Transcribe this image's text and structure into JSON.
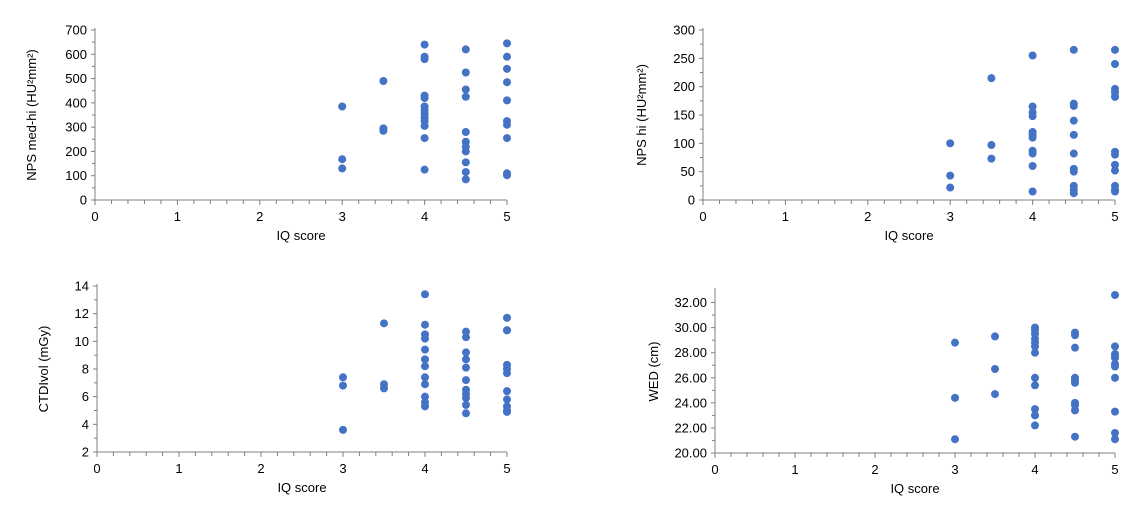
{
  "chart_data": [
    {
      "type": "scatter",
      "title": "",
      "xlabel": "IQ score",
      "ylabel": "NPS med-hi (HU²mm²)",
      "xlim": [
        0,
        5
      ],
      "ylim": [
        0,
        700
      ],
      "xticks": [
        "0",
        "1",
        "2",
        "3",
        "4",
        "5"
      ],
      "yticks": [
        "0",
        "100",
        "200",
        "300",
        "400",
        "500",
        "600",
        "700"
      ],
      "grid": false,
      "marker_color": "#4472C4",
      "points": [
        [
          3,
          385
        ],
        [
          3,
          168
        ],
        [
          3,
          130
        ],
        [
          3.5,
          490
        ],
        [
          3.5,
          295
        ],
        [
          3.5,
          285
        ],
        [
          4,
          640
        ],
        [
          4,
          590
        ],
        [
          4,
          580
        ],
        [
          4,
          430
        ],
        [
          4,
          420
        ],
        [
          4,
          385
        ],
        [
          4,
          370
        ],
        [
          4,
          355
        ],
        [
          4,
          340
        ],
        [
          4,
          325
        ],
        [
          4,
          305
        ],
        [
          4,
          255
        ],
        [
          4,
          125
        ],
        [
          4.5,
          620
        ],
        [
          4.5,
          525
        ],
        [
          4.5,
          455
        ],
        [
          4.5,
          425
        ],
        [
          4.5,
          280
        ],
        [
          4.5,
          240
        ],
        [
          4.5,
          220
        ],
        [
          4.5,
          200
        ],
        [
          4.5,
          155
        ],
        [
          4.5,
          115
        ],
        [
          4.5,
          85
        ],
        [
          5,
          645
        ],
        [
          5,
          590
        ],
        [
          5,
          540
        ],
        [
          5,
          485
        ],
        [
          5,
          410
        ],
        [
          5,
          325
        ],
        [
          5,
          310
        ],
        [
          5,
          255
        ],
        [
          5,
          110
        ],
        [
          5,
          102
        ]
      ]
    },
    {
      "type": "scatter",
      "title": "",
      "xlabel": "IQ score",
      "ylabel": "NPS hi (HU²mm²)",
      "xlim": [
        0,
        5
      ],
      "ylim": [
        0,
        300
      ],
      "xticks": [
        "0",
        "1",
        "2",
        "3",
        "4",
        "5"
      ],
      "yticks": [
        "0",
        "50",
        "100",
        "150",
        "200",
        "250",
        "300"
      ],
      "grid": false,
      "marker_color": "#4472C4",
      "points": [
        [
          3,
          100
        ],
        [
          3,
          43
        ],
        [
          3,
          22
        ],
        [
          3.5,
          215
        ],
        [
          3.5,
          97
        ],
        [
          3.5,
          73
        ],
        [
          4,
          255
        ],
        [
          4,
          165
        ],
        [
          4,
          155
        ],
        [
          4,
          148
        ],
        [
          4,
          120
        ],
        [
          4,
          115
        ],
        [
          4,
          110
        ],
        [
          4,
          87
        ],
        [
          4,
          82
        ],
        [
          4,
          60
        ],
        [
          4,
          15
        ],
        [
          4.5,
          265
        ],
        [
          4.5,
          170
        ],
        [
          4.5,
          166
        ],
        [
          4.5,
          140
        ],
        [
          4.5,
          115
        ],
        [
          4.5,
          82
        ],
        [
          4.5,
          55
        ],
        [
          4.5,
          50
        ],
        [
          4.5,
          25
        ],
        [
          4.5,
          18
        ],
        [
          4.5,
          12
        ],
        [
          5,
          265
        ],
        [
          5,
          240
        ],
        [
          5,
          196
        ],
        [
          5,
          190
        ],
        [
          5,
          182
        ],
        [
          5,
          85
        ],
        [
          5,
          80
        ],
        [
          5,
          62
        ],
        [
          5,
          52
        ],
        [
          5,
          25
        ],
        [
          5,
          18
        ],
        [
          5,
          15
        ]
      ]
    },
    {
      "type": "scatter",
      "title": "",
      "xlabel": "IQ score",
      "ylabel": "CTDIvol (mGy)",
      "xlim": [
        0,
        5
      ],
      "ylim": [
        2,
        14
      ],
      "xticks": [
        "0",
        "1",
        "2",
        "3",
        "4",
        "5"
      ],
      "yticks": [
        "2",
        "4",
        "6",
        "8",
        "10",
        "12",
        "14"
      ],
      "grid": false,
      "marker_color": "#4472C4",
      "points": [
        [
          3,
          7.4
        ],
        [
          3,
          6.8
        ],
        [
          3,
          3.6
        ],
        [
          3.5,
          11.3
        ],
        [
          3.5,
          6.9
        ],
        [
          3.5,
          6.6
        ],
        [
          4,
          13.4
        ],
        [
          4,
          11.2
        ],
        [
          4,
          10.5
        ],
        [
          4,
          10.2
        ],
        [
          4,
          9.4
        ],
        [
          4,
          8.7
        ],
        [
          4,
          8.2
        ],
        [
          4,
          7.4
        ],
        [
          4,
          6.9
        ],
        [
          4,
          6.0
        ],
        [
          4,
          5.6
        ],
        [
          4,
          5.3
        ],
        [
          4.5,
          10.7
        ],
        [
          4.5,
          10.3
        ],
        [
          4.5,
          9.2
        ],
        [
          4.5,
          8.7
        ],
        [
          4.5,
          8.1
        ],
        [
          4.5,
          7.2
        ],
        [
          4.5,
          6.5
        ],
        [
          4.5,
          6.2
        ],
        [
          4.5,
          5.9
        ],
        [
          4.5,
          5.4
        ],
        [
          4.5,
          4.8
        ],
        [
          5,
          11.7
        ],
        [
          5,
          10.8
        ],
        [
          5,
          10.8
        ],
        [
          5,
          8.3
        ],
        [
          5,
          8.0
        ],
        [
          5,
          7.7
        ],
        [
          5,
          6.4
        ],
        [
          5,
          5.8
        ],
        [
          5,
          5.3
        ],
        [
          5,
          5.0
        ],
        [
          5,
          4.9
        ]
      ]
    },
    {
      "type": "scatter",
      "title": "",
      "xlabel": "IQ score",
      "ylabel": "WED (cm)",
      "xlim": [
        0,
        5
      ],
      "ylim": [
        20,
        33
      ],
      "xticks": [
        "0",
        "1",
        "2",
        "3",
        "4",
        "5"
      ],
      "yticks": [
        "20.00",
        "22.00",
        "24.00",
        "26.00",
        "28.00",
        "30.00",
        "32.00"
      ],
      "grid": false,
      "marker_color": "#4472C4",
      "points": [
        [
          3,
          28.8
        ],
        [
          3,
          24.4
        ],
        [
          3,
          21.1
        ],
        [
          3.5,
          29.3
        ],
        [
          3.5,
          26.7
        ],
        [
          3.5,
          24.7
        ],
        [
          4,
          30.0
        ],
        [
          4,
          29.8
        ],
        [
          4,
          29.5
        ],
        [
          4,
          29.1
        ],
        [
          4,
          28.8
        ],
        [
          4,
          28.5
        ],
        [
          4,
          28.0
        ],
        [
          4,
          26.0
        ],
        [
          4,
          25.4
        ],
        [
          4,
          23.5
        ],
        [
          4,
          23.0
        ],
        [
          4,
          22.2
        ],
        [
          4.5,
          29.6
        ],
        [
          4.5,
          29.4
        ],
        [
          4.5,
          28.4
        ],
        [
          4.5,
          26.0
        ],
        [
          4.5,
          25.8
        ],
        [
          4.5,
          25.6
        ],
        [
          4.5,
          24.0
        ],
        [
          4.5,
          23.8
        ],
        [
          4.5,
          23.4
        ],
        [
          4.5,
          21.3
        ],
        [
          5,
          32.6
        ],
        [
          5,
          28.5
        ],
        [
          5,
          27.9
        ],
        [
          5,
          27.7
        ],
        [
          5,
          27.6
        ],
        [
          5,
          27.1
        ],
        [
          5,
          26.9
        ],
        [
          5,
          26.0
        ],
        [
          5,
          23.3
        ],
        [
          5,
          21.6
        ],
        [
          5,
          21.1
        ]
      ]
    }
  ]
}
